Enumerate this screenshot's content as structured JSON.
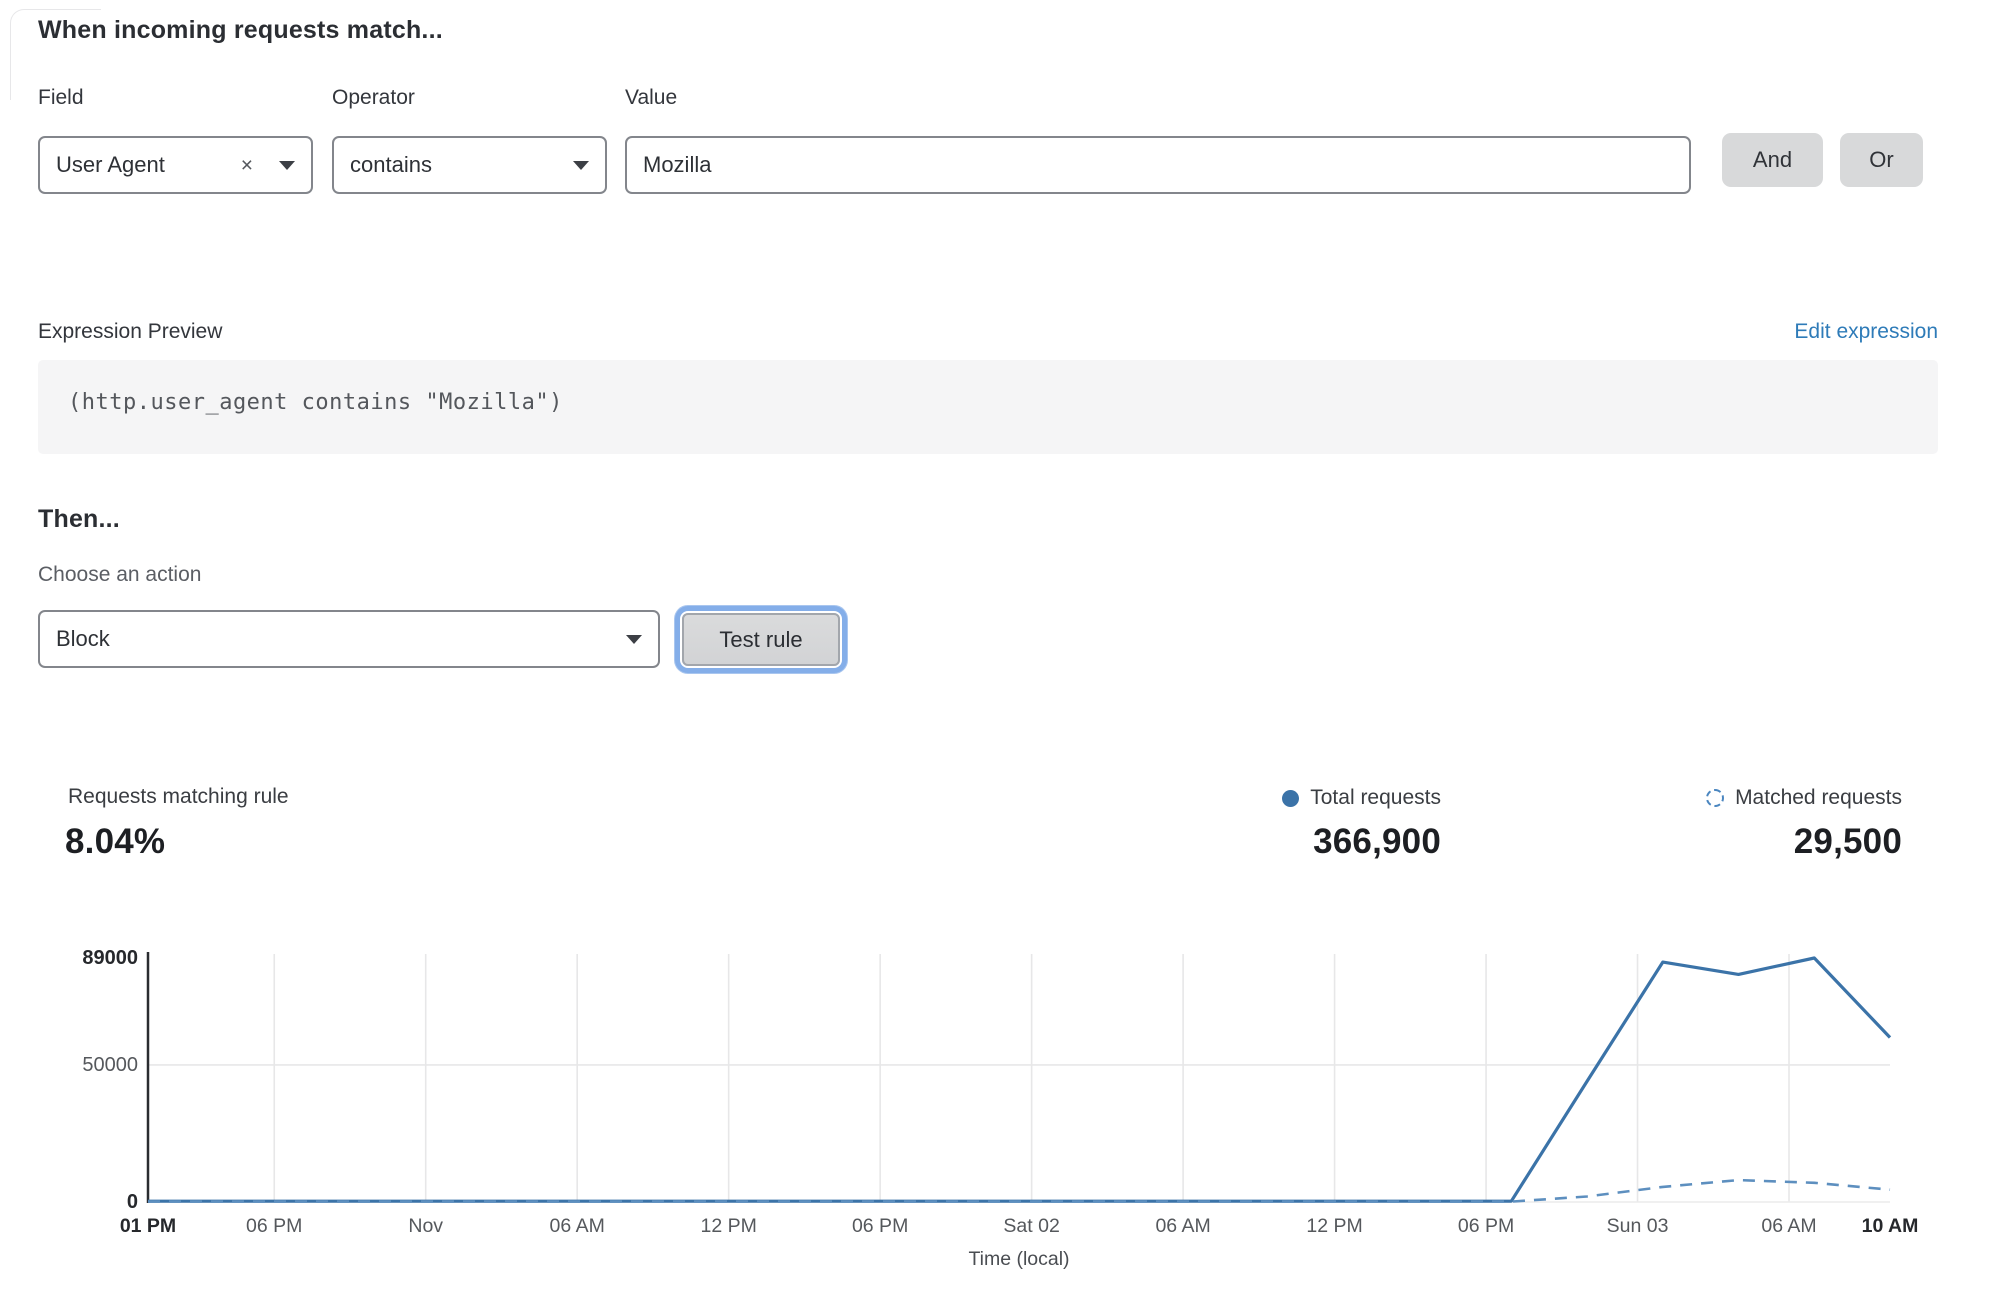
{
  "rule_builder": {
    "title": "When incoming requests match...",
    "columns": {
      "field": "Field",
      "operator": "Operator",
      "value": "Value"
    },
    "field_value": "User Agent",
    "operator_value": "contains",
    "value_value": "Mozilla",
    "and_label": "And",
    "or_label": "Or",
    "clear_icon": "×"
  },
  "expression": {
    "label": "Expression Preview",
    "edit_link": "Edit expression",
    "code": "(http.user_agent contains \"Mozilla\")"
  },
  "action": {
    "title": "Then...",
    "label": "Choose an action",
    "selected": "Block",
    "test_button": "Test rule"
  },
  "stats": {
    "matching_label": "Requests matching rule",
    "matching_value": "8.04%",
    "total_label": "Total requests",
    "total_value": "366,900",
    "matched_label": "Matched requests",
    "matched_value": "29,500"
  },
  "accent_colors": {
    "link_blue": "#2e7bb8",
    "chart_blue": "#3b73a8",
    "chart_blue_dashed": "#5d8fbf",
    "focus_ring": "#84aee9"
  },
  "chart_data": {
    "type": "line",
    "xlabel": "Time (local)",
    "ylim": [
      0,
      89000
    ],
    "grid": true,
    "legend_position": "top-right",
    "x_range_hours": [
      0,
      69
    ],
    "yticks": [
      {
        "value": 0,
        "label": "0",
        "bold": true
      },
      {
        "value": 50000,
        "label": "50000",
        "bold": false
      },
      {
        "value": 89000,
        "label": "89000",
        "bold": true
      }
    ],
    "xticks": [
      {
        "hour": 0,
        "label": "01 PM",
        "bold": true
      },
      {
        "hour": 5,
        "label": "06 PM",
        "bold": false
      },
      {
        "hour": 11,
        "label": "Nov",
        "bold": false
      },
      {
        "hour": 17,
        "label": "06 AM",
        "bold": false
      },
      {
        "hour": 23,
        "label": "12 PM",
        "bold": false
      },
      {
        "hour": 29,
        "label": "06 PM",
        "bold": false
      },
      {
        "hour": 35,
        "label": "Sat 02",
        "bold": false
      },
      {
        "hour": 41,
        "label": "06 AM",
        "bold": false
      },
      {
        "hour": 47,
        "label": "12 PM",
        "bold": false
      },
      {
        "hour": 53,
        "label": "06 PM",
        "bold": false
      },
      {
        "hour": 59,
        "label": "Sun 03",
        "bold": false
      },
      {
        "hour": 65,
        "label": "06 AM",
        "bold": false
      },
      {
        "hour": 69,
        "label": "10 AM",
        "bold": true
      }
    ],
    "series": [
      {
        "name": "Total requests",
        "style": "solid",
        "color": "#3b73a8",
        "points": [
          [
            0,
            300
          ],
          [
            54,
            300
          ],
          [
            57,
            44000
          ],
          [
            60,
            87500
          ],
          [
            63,
            83000
          ],
          [
            66,
            89000
          ],
          [
            69,
            60000
          ]
        ]
      },
      {
        "name": "Matched requests",
        "style": "dashed",
        "color": "#5d8fbf",
        "points": [
          [
            0,
            150
          ],
          [
            54,
            150
          ],
          [
            57,
            2000
          ],
          [
            60,
            5500
          ],
          [
            63,
            8000
          ],
          [
            66,
            7000
          ],
          [
            69,
            4500
          ]
        ]
      }
    ]
  }
}
